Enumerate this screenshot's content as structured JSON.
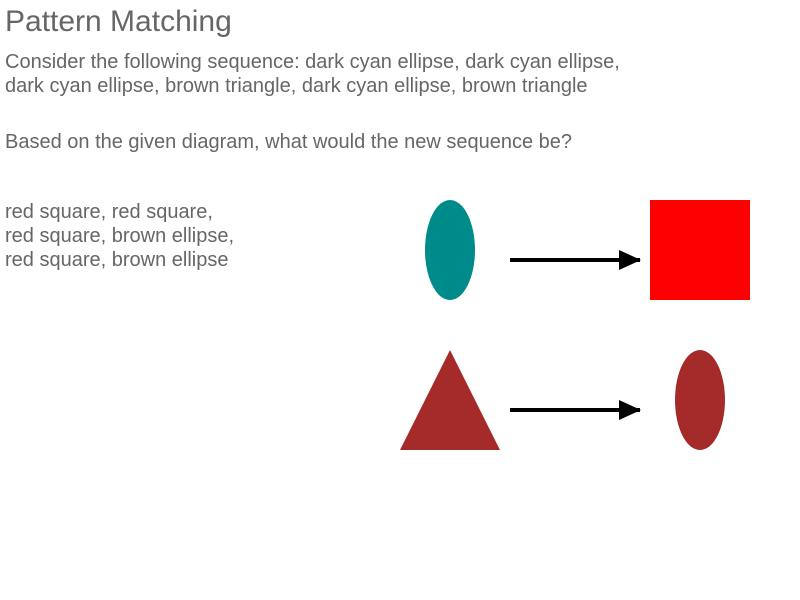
{
  "title": "Pattern Matching",
  "sequence_lines": [
    "Consider the following sequence: dark cyan ellipse, dark cyan ellipse,",
    "dark cyan ellipse, brown triangle, dark cyan ellipse, brown triangle"
  ],
  "question": "Based on the given diagram, what would the new sequence be?",
  "answer_lines": [
    "red square, red square,",
    "red square, brown ellipse,",
    "red square, brown ellipse"
  ],
  "colors": {
    "text": "#666666",
    "dark_cyan": "#008b8b",
    "brown": "#a52a2a",
    "red": "#ff0000",
    "arrow": "#000000"
  },
  "diagram": {
    "rules": [
      {
        "from": "dark cyan ellipse",
        "to": "red square"
      },
      {
        "from": "brown triangle",
        "to": "brown ellipse"
      }
    ]
  }
}
